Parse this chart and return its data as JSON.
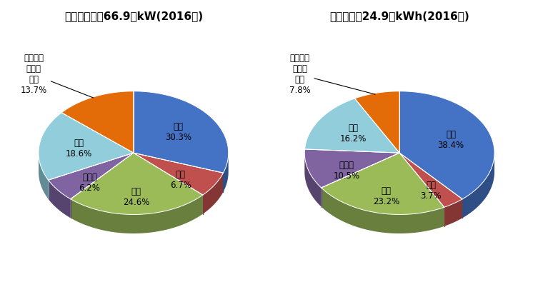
{
  "title1": "発電設備構成66.9億kW(2016年)",
  "title2": "発電電力量24.9兆kWh(2016年)",
  "pie1_labels": [
    "石炭",
    "石油",
    "ガス",
    "原子力",
    "水力",
    "再生可能\nエネル\nギー"
  ],
  "pie1_values": [
    30.3,
    6.7,
    24.6,
    6.2,
    18.6,
    13.7
  ],
  "pie1_colors": [
    "#4472c4",
    "#c0504d",
    "#9bbb59",
    "#8064a2",
    "#92cddc",
    "#e36c09"
  ],
  "pie2_labels": [
    "石炭",
    "石油",
    "ガス",
    "原子力",
    "水力",
    "再生可能\nエネル\nギー"
  ],
  "pie2_values": [
    38.4,
    3.7,
    23.2,
    10.5,
    16.2,
    7.8
  ],
  "pie2_colors": [
    "#4472c4",
    "#c0504d",
    "#9bbb59",
    "#8064a2",
    "#92cddc",
    "#e36c09"
  ],
  "title_fontsize": 11,
  "label_fontsize": 8.5,
  "bg_color": "#ffffff"
}
